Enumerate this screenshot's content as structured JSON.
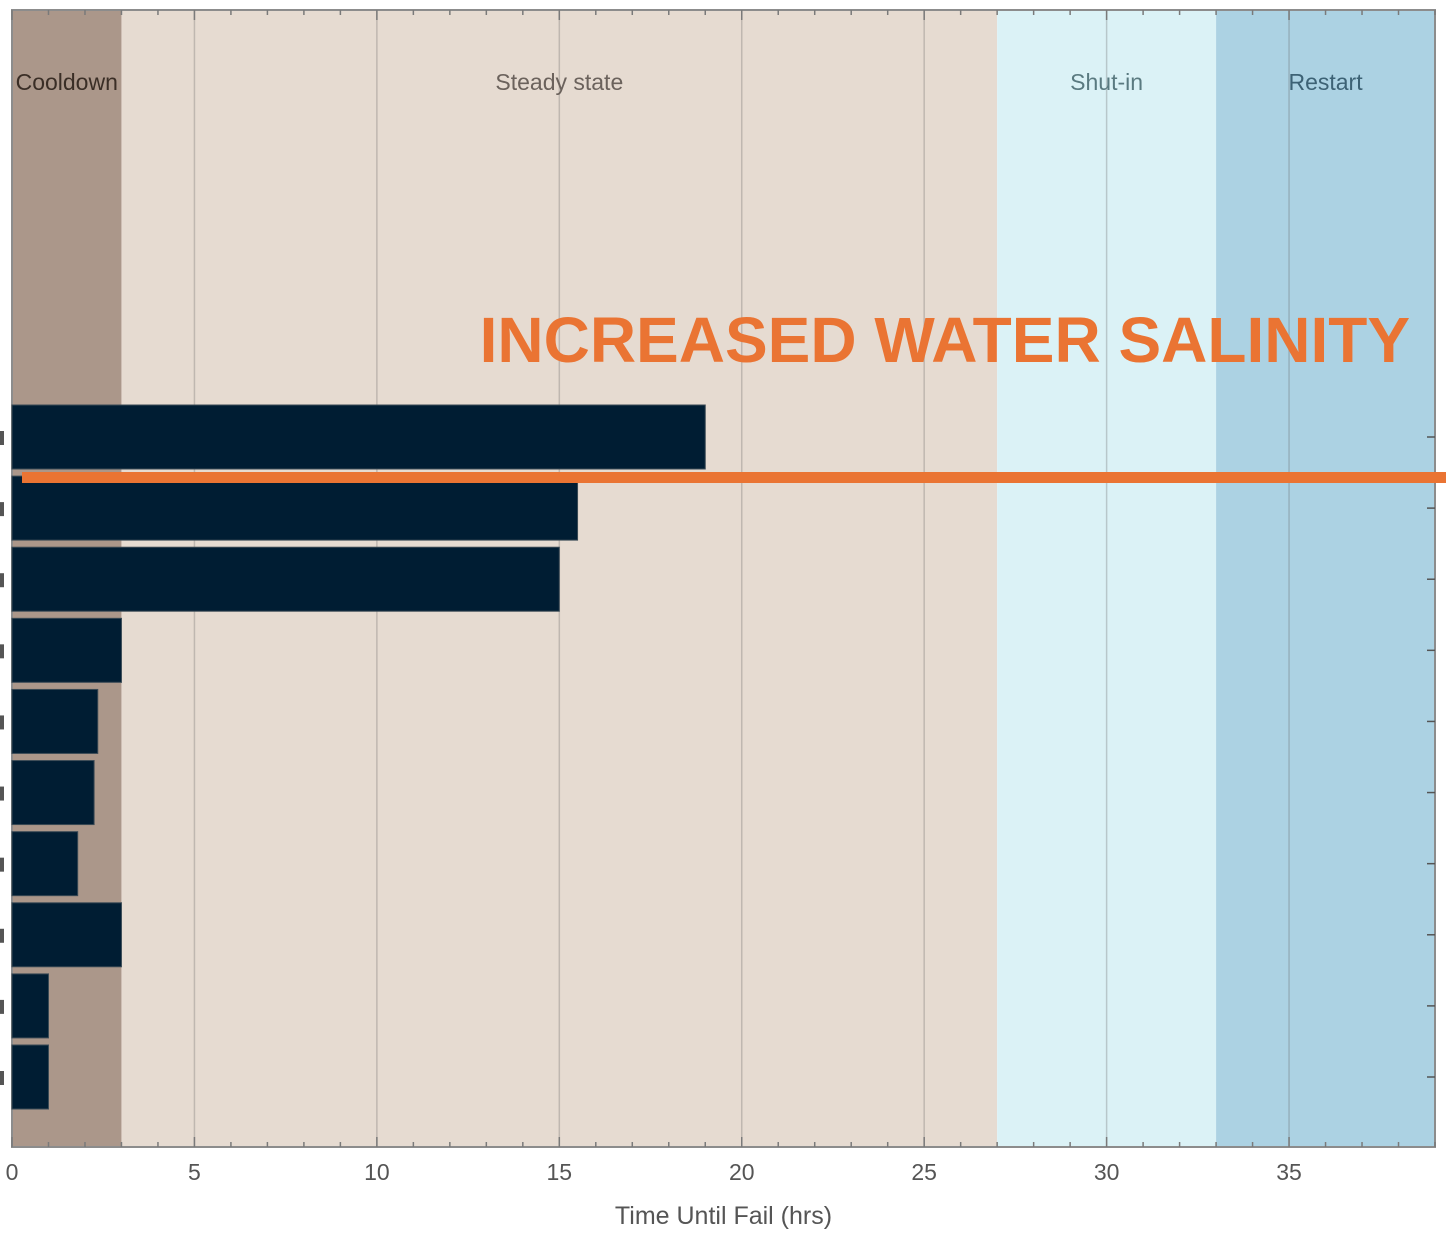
{
  "chart_data": {
    "type": "bar",
    "orientation": "horizontal",
    "xlabel": "Time Until Fail (hrs)",
    "xlim": [
      0,
      39
    ],
    "x_ticks": [
      0,
      5,
      10,
      15,
      20,
      25,
      30,
      35
    ],
    "grid": "vertical",
    "phases": [
      {
        "name": "Cooldown",
        "start": 0,
        "end": 3,
        "color": "#ab978a",
        "text_color": "#3a2e26"
      },
      {
        "name": "Steady state",
        "start": 3,
        "end": 27,
        "color": "#e6dbd1",
        "text_color": "#6b625c"
      },
      {
        "name": "Shut-in",
        "start": 27,
        "end": 33,
        "color": "#dbf2f6",
        "text_color": "#5a7a80"
      },
      {
        "name": "Restart",
        "start": 33,
        "end": 39,
        "color": "#acd2e3",
        "text_color": "#3d6275"
      }
    ],
    "series": [
      {
        "values": [
          19,
          15.5,
          15,
          3,
          2.35,
          2.25,
          1.8,
          3,
          1,
          1
        ]
      }
    ],
    "bar_color": "#001d33",
    "annotation": {
      "text": "INCREASED WATER SALINITY",
      "color": "#ea7433"
    }
  }
}
